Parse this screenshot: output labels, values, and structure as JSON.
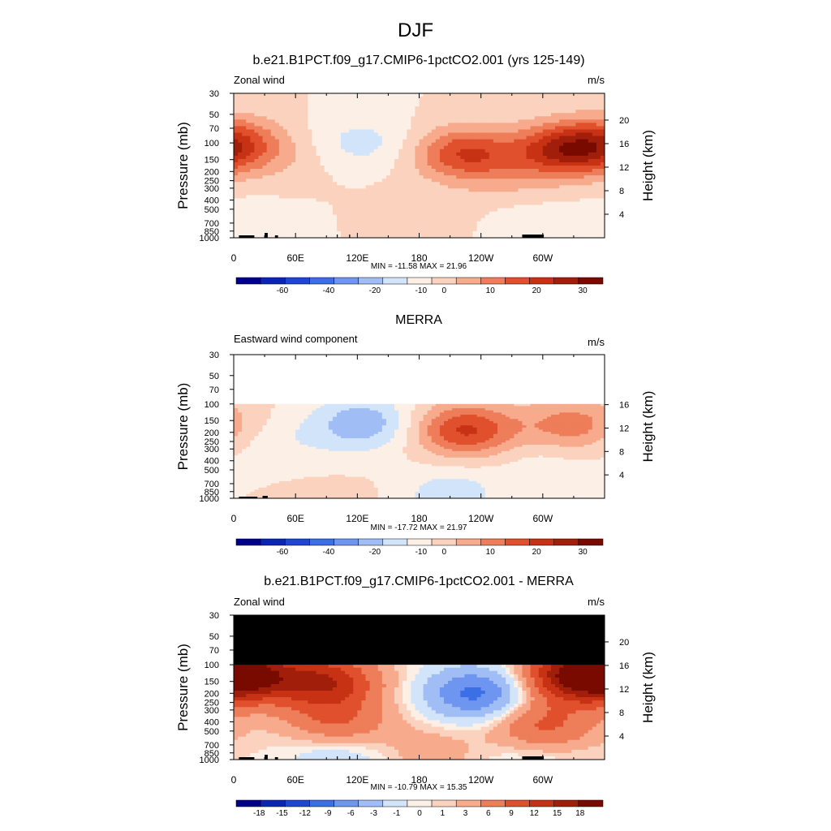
{
  "page_title": "DJF",
  "colors": {
    "main_scale": [
      "#00008c",
      "#0a24b4",
      "#1e46d2",
      "#3c6ee6",
      "#6e96f0",
      "#a0bef5",
      "#d2e4fa",
      "#fcf0e6",
      "#fbd2be",
      "#f7aa8c",
      "#ee7d5a",
      "#e0502d",
      "#c83214",
      "#a01e0a",
      "#780a00"
    ],
    "diff_scale": [
      "#00008c",
      "#0a24b4",
      "#1e46d2",
      "#3c6ee6",
      "#6e96f0",
      "#a0bef5",
      "#d2e4fa",
      "#fcf0e6",
      "#fbd2be",
      "#f7aa8c",
      "#ee7d5a",
      "#e0502d",
      "#c83214",
      "#a01e0a",
      "#780a00"
    ],
    "mask": "#000000"
  },
  "chart_data": [
    {
      "type": "heatmap",
      "title": "b.e21.B1PCT.f09_g17.CMIP6-1pctCO2.001 (yrs 125-149)",
      "left_label": "Zonal wind",
      "units": "m/s",
      "ylabel": "Pressure (mb)",
      "ylabel_right": "Height (km)",
      "xticks": [
        "0",
        "60E",
        "120E",
        "180",
        "120W",
        "60W"
      ],
      "yticks": [
        "30",
        "50",
        "70",
        "100",
        "150",
        "200",
        "250",
        "300",
        "400",
        "500",
        "700",
        "850",
        "1000"
      ],
      "height_ticks": [
        "20",
        "16",
        "12",
        "8",
        "4"
      ],
      "stats": "MIN = -11.58  MAX =  21.96",
      "levels": [
        "-60",
        "-40",
        "-20",
        "-10",
        "0",
        "10",
        "20",
        "30"
      ],
      "data_min": -11.58,
      "data_max": 21.96,
      "top_pressure": 30,
      "features": [
        {
          "lon": 0,
          "p": 100,
          "value": 16
        },
        {
          "lon": 45,
          "p": 160,
          "value": 3
        },
        {
          "lon": 125,
          "p": 100,
          "value": -7
        },
        {
          "lon": 180,
          "p": 600,
          "value": 3
        },
        {
          "lon": 225,
          "p": 130,
          "value": 20
        },
        {
          "lon": 270,
          "p": 250,
          "value": 4
        },
        {
          "lon": 320,
          "p": 120,
          "value": 22
        },
        {
          "lon": 290,
          "p": 700,
          "value": -3
        },
        {
          "lon": 20,
          "p": 750,
          "value": -3
        }
      ]
    },
    {
      "type": "heatmap",
      "title": "MERRA",
      "left_label": "Eastward wind component",
      "units": "m/s",
      "ylabel": "Pressure (mb)",
      "ylabel_right": "Height (km)",
      "xticks": [
        "0",
        "60E",
        "120E",
        "180",
        "120W",
        "60W"
      ],
      "yticks": [
        "30",
        "50",
        "70",
        "100",
        "150",
        "200",
        "250",
        "300",
        "400",
        "500",
        "700",
        "850",
        "1000"
      ],
      "height_ticks": [
        "16",
        "12",
        "8",
        "4"
      ],
      "stats": "MIN = -17.72  MAX =  21.97",
      "levels": [
        "-60",
        "-40",
        "-20",
        "-10",
        "0",
        "10",
        "20",
        "30"
      ],
      "data_min": -17.72,
      "data_max": 21.97,
      "top_pressure": 100,
      "features": [
        {
          "lon": 40,
          "p": 250,
          "value": -4
        },
        {
          "lon": 125,
          "p": 160,
          "value": -14
        },
        {
          "lon": 100,
          "p": 500,
          "value": -2
        },
        {
          "lon": 225,
          "p": 190,
          "value": 21
        },
        {
          "lon": 330,
          "p": 170,
          "value": 13
        },
        {
          "lon": 300,
          "p": 400,
          "value": -3
        },
        {
          "lon": 210,
          "p": 900,
          "value": -8
        },
        {
          "lon": 100,
          "p": 800,
          "value": 3
        }
      ]
    },
    {
      "type": "heatmap",
      "title": "b.e21.B1PCT.f09_g17.CMIP6-1pctCO2.001 - MERRA",
      "left_label": "Zonal wind",
      "units": "m/s",
      "ylabel": "Pressure (mb)",
      "ylabel_right": "Height (km)",
      "xticks": [
        "0",
        "60E",
        "120E",
        "180",
        "120W",
        "60W"
      ],
      "yticks": [
        "30",
        "50",
        "70",
        "100",
        "150",
        "200",
        "250",
        "300",
        "400",
        "500",
        "700",
        "850",
        "1000"
      ],
      "height_ticks": [
        "20",
        "16",
        "12",
        "8",
        "4"
      ],
      "stats": "MIN = -10.79  MAX =  15.35",
      "levels": [
        "-18",
        "-15",
        "-12",
        "-9",
        "-6",
        "-3",
        "-1",
        "0",
        "1",
        "3",
        "6",
        "9",
        "12",
        "15",
        "18"
      ],
      "data_min": -10.79,
      "data_max": 15.35,
      "top_pressure": 30,
      "masked_above": 100,
      "features": [
        {
          "lon": 15,
          "p": 130,
          "value": 13
        },
        {
          "lon": 90,
          "p": 150,
          "value": 11
        },
        {
          "lon": 100,
          "p": 400,
          "value": 6
        },
        {
          "lon": 235,
          "p": 200,
          "value": -10
        },
        {
          "lon": 330,
          "p": 130,
          "value": 14
        },
        {
          "lon": 300,
          "p": 450,
          "value": 7
        },
        {
          "lon": 100,
          "p": 900,
          "value": -3
        },
        {
          "lon": 290,
          "p": 880,
          "value": -2
        },
        {
          "lon": 190,
          "p": 800,
          "value": 2
        }
      ]
    }
  ]
}
